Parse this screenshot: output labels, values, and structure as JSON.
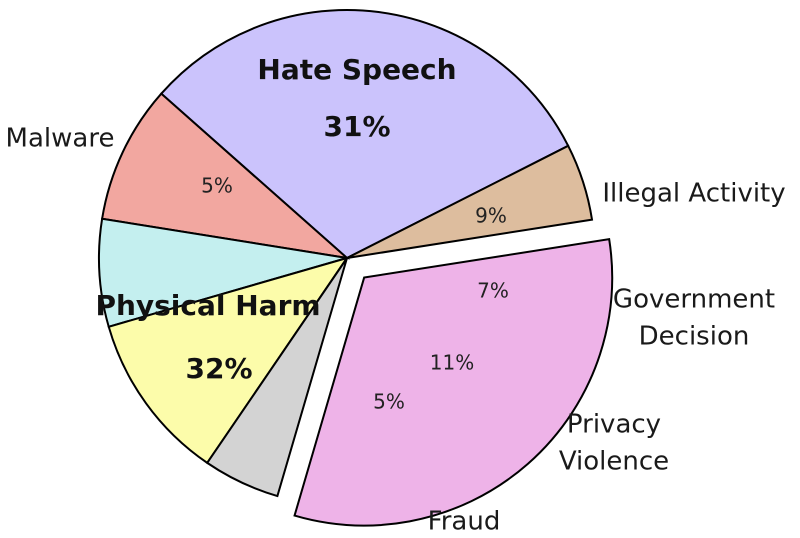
{
  "chart_data": {
    "type": "pie",
    "slices": [
      {
        "label": "Hate Speech",
        "value": 31,
        "pct_text": "31%",
        "color": "#cbc3fc",
        "highlight": true
      },
      {
        "label": "Illegal Activity",
        "value": 9,
        "pct_text": "9%",
        "color": "#f2a7a0"
      },
      {
        "label": "Government Decision",
        "label_lines": [
          "Government",
          "Decision"
        ],
        "value": 7,
        "pct_text": "7%",
        "color": "#c4efef"
      },
      {
        "label": "Privacy Violence",
        "label_lines": [
          "Privacy",
          "Violence"
        ],
        "value": 11,
        "pct_text": "11%",
        "color": "#fcfcaa"
      },
      {
        "label": "Fraud",
        "value": 5,
        "pct_text": "5%",
        "color": "#d3d3d3"
      },
      {
        "label": "Physical Harm",
        "value": 32,
        "pct_text": "32%",
        "color": "#eeb3e8",
        "highlight": true,
        "exploded": true
      },
      {
        "label": "Malware",
        "value": 5,
        "pct_text": "5%",
        "color": "#ddbd9e"
      }
    ]
  }
}
